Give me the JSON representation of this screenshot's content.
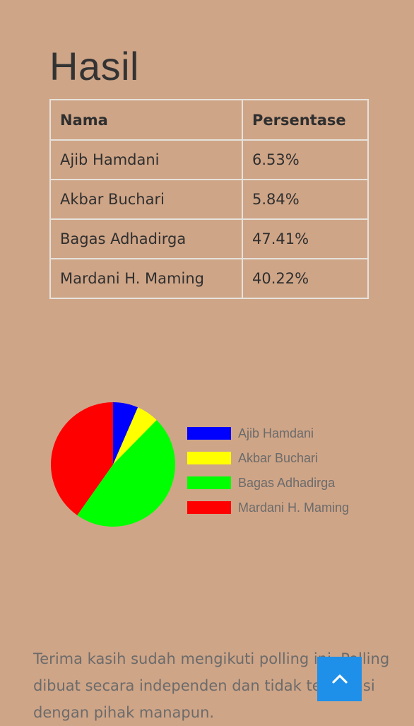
{
  "page": {
    "title": "Hasil"
  },
  "table": {
    "headers": [
      "Nama",
      "Persentase"
    ],
    "rows": [
      {
        "name": "Ajib Hamdani",
        "pct": "6.53%"
      },
      {
        "name": "Akbar Buchari",
        "pct": "5.84%"
      },
      {
        "name": "Bagas Adhadirga",
        "pct": "47.41%"
      },
      {
        "name": "Mardani H. Maming",
        "pct": "40.22%"
      }
    ]
  },
  "chart_data": {
    "type": "pie",
    "categories": [
      "Ajib Hamdani",
      "Akbar Buchari",
      "Bagas Adhadirga",
      "Mardani H. Maming"
    ],
    "values": [
      6.53,
      5.84,
      47.41,
      40.22
    ],
    "colors": [
      "#0000ff",
      "#ffff00",
      "#00ff00",
      "#ff0000"
    ],
    "legend": "right",
    "title": ""
  },
  "footer": {
    "text": "Terima kasih sudah mengikuti polling ini. Polling dibuat secara independen dan tidak terafiliasi dengan pihak manapun."
  },
  "back_to_top": {
    "icon": "chevron-up-icon",
    "color": "#1e90ea"
  }
}
